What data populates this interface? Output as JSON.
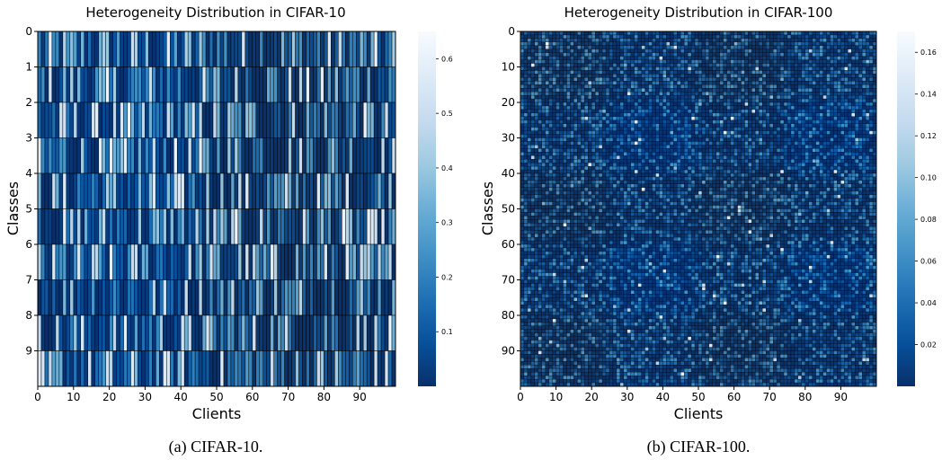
{
  "chart_data": [
    {
      "type": "heatmap",
      "title": "Heterogeneity Distribution in CIFAR-10",
      "xlabel": "Clients",
      "ylabel": "Classes",
      "x_ticks": [
        "0",
        "10",
        "20",
        "30",
        "40",
        "50",
        "60",
        "70",
        "80",
        "90"
      ],
      "y_ticks": [
        "0",
        "1",
        "2",
        "3",
        "4",
        "5",
        "6",
        "7",
        "8",
        "9"
      ],
      "n_rows": 10,
      "n_cols": 100,
      "colormap": "Blues_r",
      "colorbar_range": [
        0.0,
        0.65
      ],
      "colorbar_ticks": [
        "0.1",
        "0.2",
        "0.3",
        "0.4",
        "0.5",
        "0.6"
      ],
      "caption": "(a) CIFAR-10."
    },
    {
      "type": "heatmap",
      "title": "Heterogeneity Distribution in CIFAR-100",
      "xlabel": "Clients",
      "ylabel": "Classes",
      "x_ticks": [
        "0",
        "10",
        "20",
        "30",
        "40",
        "50",
        "60",
        "70",
        "80",
        "90"
      ],
      "y_ticks": [
        "0",
        "10",
        "20",
        "30",
        "40",
        "50",
        "60",
        "70",
        "80",
        "90"
      ],
      "n_rows": 100,
      "n_cols": 100,
      "colormap": "Blues_r",
      "colorbar_range": [
        0.0,
        0.17
      ],
      "colorbar_ticks": [
        "0.02",
        "0.04",
        "0.06",
        "0.08",
        "0.10",
        "0.12",
        "0.14",
        "0.16"
      ],
      "caption": "(b) CIFAR-100."
    }
  ]
}
